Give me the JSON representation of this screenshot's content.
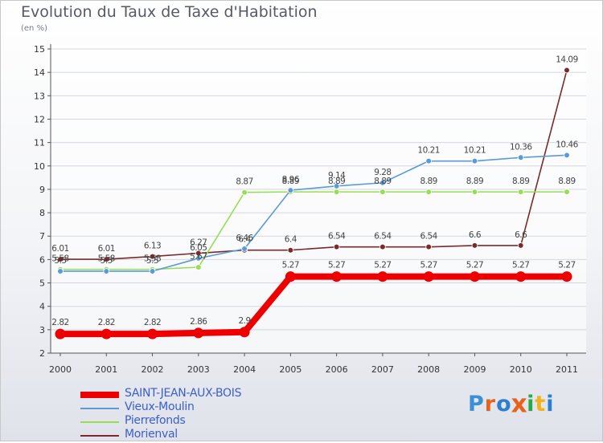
{
  "header": {
    "title": "Evolution du Taux de Taxe d'Habitation",
    "subtitle": "(en %)"
  },
  "logo": {
    "text": "Proxiti",
    "letter_colors": [
      "#3b8fd4",
      "#e8621b",
      "#2a7fd0",
      "#e8621b",
      "#2aa84a",
      "#f2b21b",
      "#2a7fd0"
    ]
  },
  "chart_data": {
    "type": "line",
    "title": "Evolution du Taux de Taxe d'Habitation",
    "subtitle": "(en %)",
    "x": [
      "2000",
      "2001",
      "2002",
      "2003",
      "2004",
      "2005",
      "2006",
      "2007",
      "2008",
      "2009",
      "2010",
      "2011"
    ],
    "ylim": [
      2,
      15
    ],
    "yticks": [
      "2",
      "3",
      "4",
      "5",
      "6",
      "7",
      "8",
      "9",
      "10",
      "11",
      "12",
      "13",
      "14",
      "15"
    ],
    "grid": true,
    "legend_position": "bottom-left",
    "series": [
      {
        "name": "SAINT-JEAN-AUX-BOIS",
        "color": "#ee0000",
        "values": [
          2.82,
          2.82,
          2.82,
          2.86,
          2.9,
          5.27,
          5.27,
          5.27,
          5.27,
          5.27,
          5.27,
          5.27
        ],
        "labels": [
          "2.82",
          "2.82",
          "2.82",
          "2.86",
          "2.9",
          "5.27",
          "5.27",
          "5.27",
          "5.27",
          "5.27",
          "5.27",
          "5.27"
        ]
      },
      {
        "name": "Vieux-Moulin",
        "color": "#5b9bd5",
        "values": [
          5.5,
          5.5,
          5.5,
          6.05,
          6.46,
          8.96,
          9.14,
          9.28,
          10.21,
          10.21,
          10.36,
          10.46
        ],
        "labels": [
          "5.5",
          "5.5",
          "5.5",
          "6.05",
          "6.46",
          "8.96",
          "9.14",
          "9.28",
          "10.21",
          "10.21",
          "10.36",
          "10.46"
        ]
      },
      {
        "name": "Pierrefonds",
        "color": "#99dd55",
        "values": [
          5.58,
          5.58,
          5.58,
          5.67,
          8.87,
          8.89,
          8.89,
          8.89,
          8.89,
          8.89,
          8.89,
          8.89
        ],
        "labels": [
          "5.58",
          "5.58",
          "5.58",
          "5.67",
          "8.87",
          "8.89",
          "8.89",
          "8.89",
          "8.89",
          "8.89",
          "8.89",
          "8.89"
        ]
      },
      {
        "name": "Morienval",
        "color": "#7a2a2a",
        "values": [
          6.01,
          6.01,
          6.13,
          6.27,
          6.4,
          6.4,
          6.54,
          6.54,
          6.54,
          6.6,
          6.6,
          14.09
        ],
        "labels": [
          "6.01",
          "6.01",
          "6.13",
          "6.27",
          "6.4",
          "6.4",
          "6.54",
          "6.54",
          "6.54",
          "6.6",
          "6.6",
          "14.09"
        ]
      }
    ]
  }
}
